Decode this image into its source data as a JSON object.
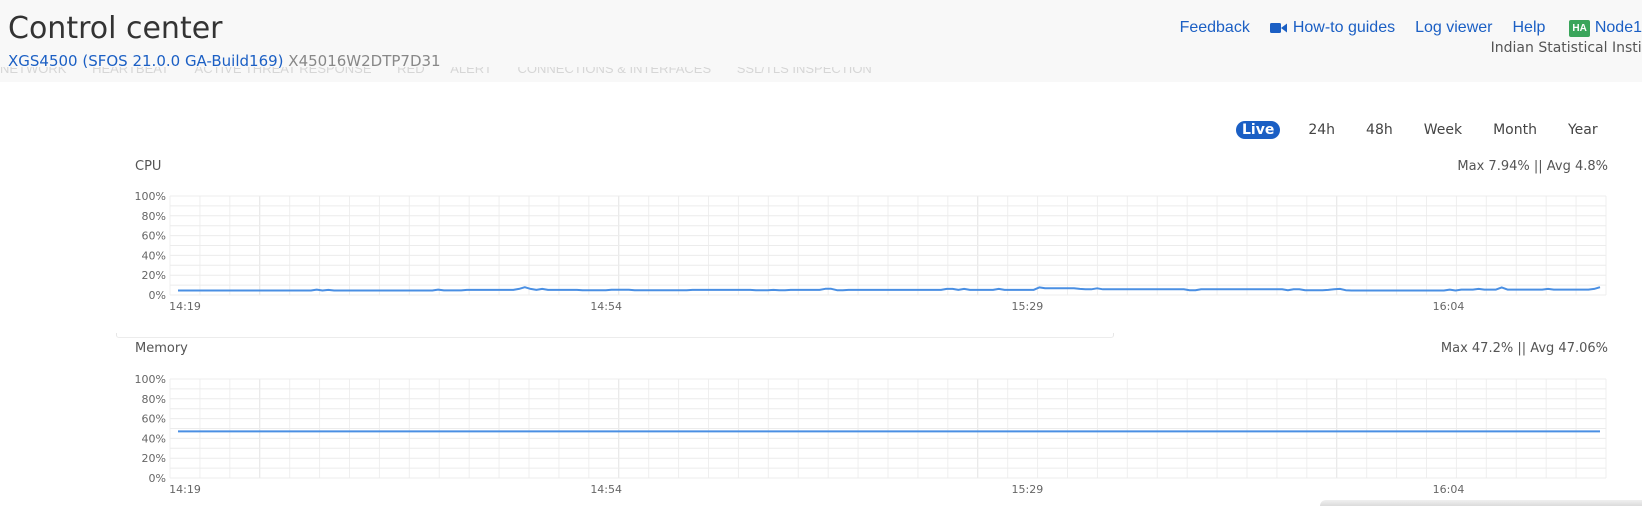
{
  "header": {
    "title": "Control center",
    "device_model": "XGS4500 (SFOS 21.0.0 GA-Build169)",
    "serial": "X45016W2DTP7D31",
    "org_name": "Indian Statistical Institu",
    "links": [
      {
        "label": "Feedback"
      },
      {
        "label": "How-to guides",
        "icon": "video-camera-icon"
      },
      {
        "label": "Log viewer"
      },
      {
        "label": "Help"
      }
    ],
    "ha_badge": "HA",
    "node": "Node1"
  },
  "tabs_ghost": [
    "NETWORK",
    "HEARTBEAT",
    "ACTIVE THREAT RESPONSE",
    "RED",
    "ALERT",
    "CONNECTIONS & INTERFACES",
    "SSL/TLS INSPECTION"
  ],
  "time_ranges": [
    {
      "label": "Live",
      "active": true
    },
    {
      "label": "24h",
      "active": false
    },
    {
      "label": "48h",
      "active": false
    },
    {
      "label": "Week",
      "active": false
    },
    {
      "label": "Month",
      "active": false
    },
    {
      "label": "Year",
      "active": false
    }
  ],
  "colors": {
    "accent": "#1b5fc4",
    "line": "#4a8fe3",
    "ha_green": "#3aa55b"
  },
  "chart_data": [
    {
      "type": "line",
      "title": "CPU",
      "stats": "Max 7.94% || Avg 4.8%",
      "y_ticks": [
        "100%",
        "80%",
        "60%",
        "40%",
        "20%",
        "0%"
      ],
      "ylim": [
        0,
        100
      ],
      "x_ticks": [
        "14:19",
        "14:54",
        "15:29",
        "16:04"
      ],
      "series": [
        {
          "values": [
            4.5,
            4.5,
            4.5,
            4.5,
            4.5,
            4.5,
            4.5,
            4.5,
            4.5,
            4.5,
            4.5,
            4.5,
            4.5,
            4.5,
            4.5,
            4.5,
            4.5,
            4.5,
            4.5,
            4.5,
            4.5,
            4.5,
            4.5,
            4.5,
            5.5,
            4.5,
            5.2,
            4.5,
            4.5,
            4.5,
            4.5,
            4.5,
            4.5,
            4.5,
            4.5,
            4.5,
            4.5,
            4.5,
            4.5,
            4.5,
            4.5,
            4.5,
            4.5,
            4.5,
            4.5,
            5.5,
            4.6,
            4.6,
            4.6,
            4.6,
            5.2,
            5.2,
            5.2,
            5.2,
            5.2,
            5.2,
            5.2,
            5.2,
            5.2,
            6.2,
            7.9,
            6.2,
            5.2,
            6.2,
            5.2,
            5.2,
            5.2,
            5.2,
            5.2,
            5.2,
            4.8,
            4.8,
            4.8,
            4.8,
            4.8,
            5.3,
            5.3,
            5.3,
            5.3,
            4.8,
            4.8,
            4.8,
            4.8,
            4.8,
            4.8,
            4.8,
            4.8,
            4.8,
            4.8,
            5.2,
            5.2,
            5.2,
            5.2,
            5.2,
            5.2,
            5.2,
            5.2,
            5.2,
            5.2,
            5.2,
            4.8,
            4.8,
            4.8,
            5.2,
            4.8,
            4.8,
            5.2,
            5.2,
            5.2,
            5.2,
            5.2,
            5.2,
            6.3,
            6.3,
            4.8,
            4.8,
            5.2,
            5.2,
            5.2,
            5.2,
            5.2,
            5.2,
            5.2,
            5.2,
            5.2,
            5.2,
            5.2,
            5.2,
            5.2,
            5.2,
            5.2,
            5.2,
            5.2,
            6.2,
            6.2,
            5.2,
            6.2,
            5.2,
            5.2,
            5.2,
            5.2,
            5.2,
            6.2,
            5.2,
            5.2,
            5.2,
            5.2,
            5.2,
            5.2,
            7.7,
            6.8,
            6.8,
            6.8,
            6.8,
            6.8,
            6.8,
            6.2,
            5.8,
            5.8,
            6.8,
            5.8,
            5.8,
            5.8,
            5.8,
            5.8,
            5.8,
            5.8,
            5.8,
            5.8,
            5.8,
            5.8,
            5.8,
            5.8,
            5.8,
            5.8,
            4.8,
            4.8,
            5.8,
            5.8,
            5.8,
            5.8,
            5.8,
            5.8,
            5.8,
            5.8,
            5.8,
            5.8,
            5.8,
            5.8,
            5.8,
            5.8,
            5.8,
            4.8,
            5.8,
            5.8,
            4.8,
            4.8,
            4.8,
            4.8,
            5.2,
            5.8,
            6.2,
            4.8,
            4.5,
            4.5,
            4.5,
            4.5,
            4.5,
            4.5,
            4.5,
            4.5,
            4.5,
            4.5,
            4.5,
            4.5,
            4.5,
            4.5,
            4.5,
            4.5,
            4.5,
            5.5,
            4.5,
            5.5,
            5.5,
            5.5,
            6.2,
            5.5,
            5.5,
            5.5,
            7.7,
            5.5,
            5.5,
            5.5,
            5.5,
            5.5,
            5.5,
            5.5,
            6.2,
            5.5,
            5.5,
            5.5,
            5.5,
            5.5,
            5.5,
            5.5,
            6.2,
            7.9
          ]
        }
      ]
    },
    {
      "type": "line",
      "title": "Memory",
      "stats": "Max 47.2% || Avg 47.06%",
      "y_ticks": [
        "100%",
        "80%",
        "60%",
        "40%",
        "20%",
        "0%"
      ],
      "ylim": [
        0,
        100
      ],
      "x_ticks": [
        "14:19",
        "14:54",
        "15:29",
        "16:04"
      ],
      "series": [
        {
          "values": [
            47.06,
            47.06,
            47.06,
            47.06,
            47.06,
            47.06,
            47.06,
            47.06,
            47.06,
            47.06,
            47.06,
            47.06,
            47.06,
            47.06,
            47.06,
            47.06,
            47.06,
            47.06,
            47.06,
            47.06
          ]
        }
      ]
    }
  ]
}
